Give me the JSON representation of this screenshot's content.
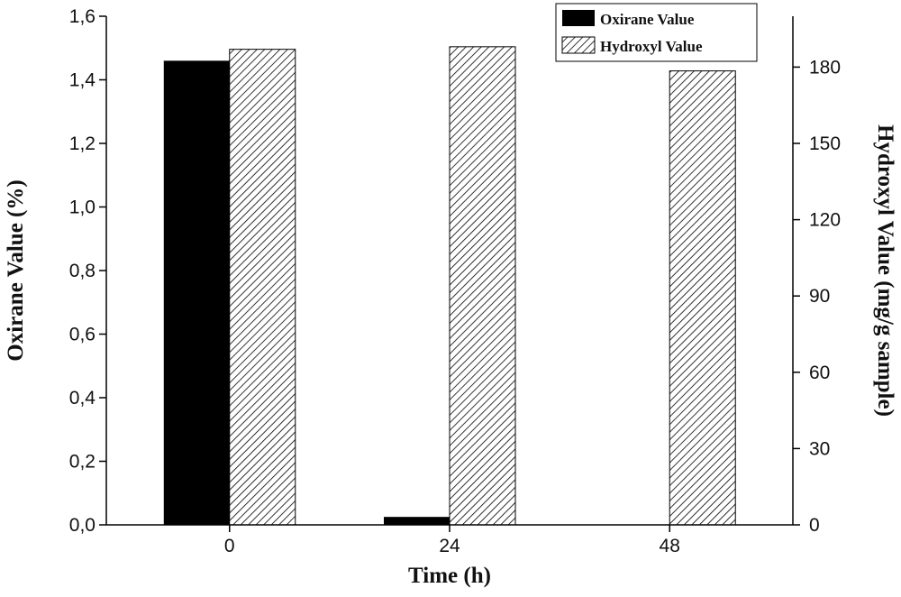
{
  "chart_data": {
    "type": "bar",
    "categories": [
      "0",
      "24",
      "48"
    ],
    "xlabel": "Time (h)",
    "ylabel_left": "Oxirane Value (%)",
    "ylabel_right": "Hydroxyl Value (mg/g sample)",
    "ylim_left": [
      0,
      1.6
    ],
    "ylim_right": [
      0,
      200
    ],
    "left_ticks": [
      "0,0",
      "0,2",
      "0,4",
      "0,6",
      "0,8",
      "1,0",
      "1,2",
      "1,4",
      "1,6"
    ],
    "right_ticks": [
      "0",
      "30",
      "60",
      "90",
      "120",
      "150",
      "180"
    ],
    "series": [
      {
        "name": "Oxirane Value",
        "axis": "left",
        "fill": "solid",
        "color": "#000000",
        "values": [
          1.46,
          0.025,
          0.0
        ]
      },
      {
        "name": "Hydroxyl Value",
        "axis": "right",
        "fill": "hatched",
        "color": "#000000",
        "values": [
          187,
          188,
          178.5
        ]
      }
    ],
    "legend_position": "top-right",
    "grid": false
  }
}
